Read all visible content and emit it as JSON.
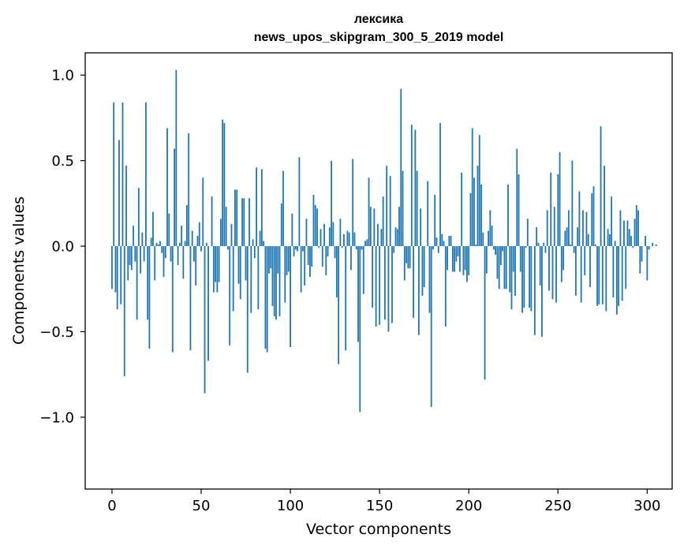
{
  "chart_data": {
    "type": "bar",
    "title": "лексика",
    "subtitle": "news_upos_skipgram_300_5_2019 model",
    "xlabel": "Vector components",
    "ylabel": "Components values",
    "xlim": [
      -15,
      314
    ],
    "ylim": [
      -1.42,
      1.13
    ],
    "xticks": [
      0,
      50,
      100,
      150,
      200,
      250,
      300
    ],
    "xtick_labels": [
      "0",
      "50",
      "100",
      "150",
      "200",
      "250",
      "300"
    ],
    "yticks": [
      -1.0,
      -0.5,
      0.0,
      0.5,
      1.0
    ],
    "ytick_labels": [
      "−1.0",
      "−0.5",
      "0.0",
      "0.5",
      "1.0"
    ],
    "grid": false,
    "bar_color": "#1f77b4",
    "x_start": 0,
    "values": [
      -0.25,
      0.84,
      -0.27,
      -0.37,
      0.62,
      -0.34,
      0.84,
      -0.76,
      0.47,
      -0.2,
      -0.11,
      -0.14,
      0.12,
      -0.09,
      -0.43,
      0.34,
      -0.16,
      0.08,
      -0.09,
      0.84,
      -0.43,
      -0.6,
      0.05,
      0.2,
      -0.2,
      0.02,
      0.01,
      0.03,
      -0.04,
      -0.18,
      -0.07,
      0.69,
      0.19,
      -0.09,
      -0.62,
      0.57,
      1.03,
      -0.11,
      0.02,
      0.12,
      -0.19,
      0.03,
      0.24,
      0.66,
      -0.61,
      0.09,
      -0.09,
      -0.23,
      0.06,
      0.14,
      -0.03,
      0.4,
      -0.86,
      0.02,
      -0.67,
      0.0,
      0.29,
      -0.27,
      -0.21,
      -0.27,
      -0.21,
      0.16,
      0.74,
      0.72,
      0.23,
      -0.02,
      -0.58,
      0.13,
      -0.38,
      0.33,
      0.33,
      -0.22,
      -0.31,
      0.28,
      0.28,
      -0.2,
      -0.74,
      0.28,
      -0.39,
      0.04,
      -0.07,
      0.46,
      -0.37,
      0.09,
      0.45,
      0.03,
      -0.6,
      -0.62,
      -0.16,
      -0.13,
      -0.35,
      -0.41,
      -0.43,
      -0.16,
      -0.41,
      0.25,
      0.44,
      -0.33,
      -0.17,
      -0.15,
      -0.59,
      0.19,
      -0.06,
      -0.02,
      -0.03,
      0.52,
      -0.27,
      -0.03,
      -0.23,
      0.16,
      -0.11,
      -0.18,
      -0.12,
      0.3,
      0.24,
      0.22,
      -0.01,
      0.1,
      -0.12,
      0.13,
      -0.17,
      -0.06,
      0.11,
      0.5,
      0.14,
      -0.07,
      -0.3,
      -0.69,
      0.16,
      -0.01,
      0.07,
      -0.61,
      0.09,
      0.08,
      -0.14,
      0.51,
      0.08,
      -0.02,
      -0.56,
      -0.97,
      -0.02,
      -0.28,
      0.03,
      0.04,
      0.4,
      0.23,
      -0.36,
      0.22,
      -0.47,
      0.13,
      -0.46,
      0.1,
      0.29,
      -0.43,
      0.47,
      -0.5,
      0.41,
      -0.45,
      -0.04,
      0.11,
      0.1,
      0.23,
      0.92,
      0.44,
      -0.2,
      -0.1,
      -0.13,
      -0.13,
      0.71,
      -0.42,
      0.68,
      0.44,
      -0.52,
      0.22,
      -0.29,
      -0.24,
      0.0,
      0.38,
      -0.39,
      -0.94,
      -0.02,
      0.3,
      0.05,
      -0.04,
      0.72,
      0.07,
      0.03,
      -0.47,
      -0.14,
      0.06,
      0.06,
      -0.15,
      -0.15,
      -0.09,
      -0.06,
      -0.15,
      0.43,
      -0.17,
      -0.14,
      -0.21,
      -0.17,
      0.31,
      0.69,
      0.4,
      0.01,
      0.47,
      0.65,
      0.36,
      0.08,
      -0.78,
      -0.16,
      0.09,
      0.21,
      0.12,
      -0.02,
      -0.05,
      -0.19,
      -0.25,
      -0.11,
      -0.03,
      -0.25,
      -0.25,
      0.36,
      -0.27,
      -0.37,
      -0.15,
      -0.29,
      0.57,
      0.42,
      -0.15,
      -0.39,
      -0.36,
      -0.01,
      0.16,
      -0.36,
      -0.38,
      0.0,
      -0.52,
      0.11,
      0.02,
      -0.23,
      -0.53,
      0.02,
      -0.04,
      0.21,
      -0.26,
      0.43,
      -0.31,
      0.23,
      -0.33,
      0.42,
      0.55,
      -0.21,
      -0.14,
      0.09,
      0.11,
      0.21,
      0.01,
      0.5,
      -0.04,
      -0.29,
      0.11,
      0.32,
      -0.33,
      0.21,
      -0.17,
      0.2,
      0.07,
      -0.24,
      0.31,
      0.35,
      0.01,
      -0.35,
      -0.34,
      0.7,
      -0.34,
      0.47,
      -0.38,
      0.1,
      0.07,
      0.29,
      -0.3,
      0.03,
      -0.4,
      -0.35,
      0.21,
      -0.32,
      0.15,
      -0.25,
      0.15,
      0.1,
      0.06,
      -0.01,
      0.16,
      0.24,
      0.21,
      -0.16,
      -0.09,
      0.0,
      0.06,
      -0.2,
      -0.02,
      0.0,
      0.02,
      0.0,
      0.01
    ]
  }
}
